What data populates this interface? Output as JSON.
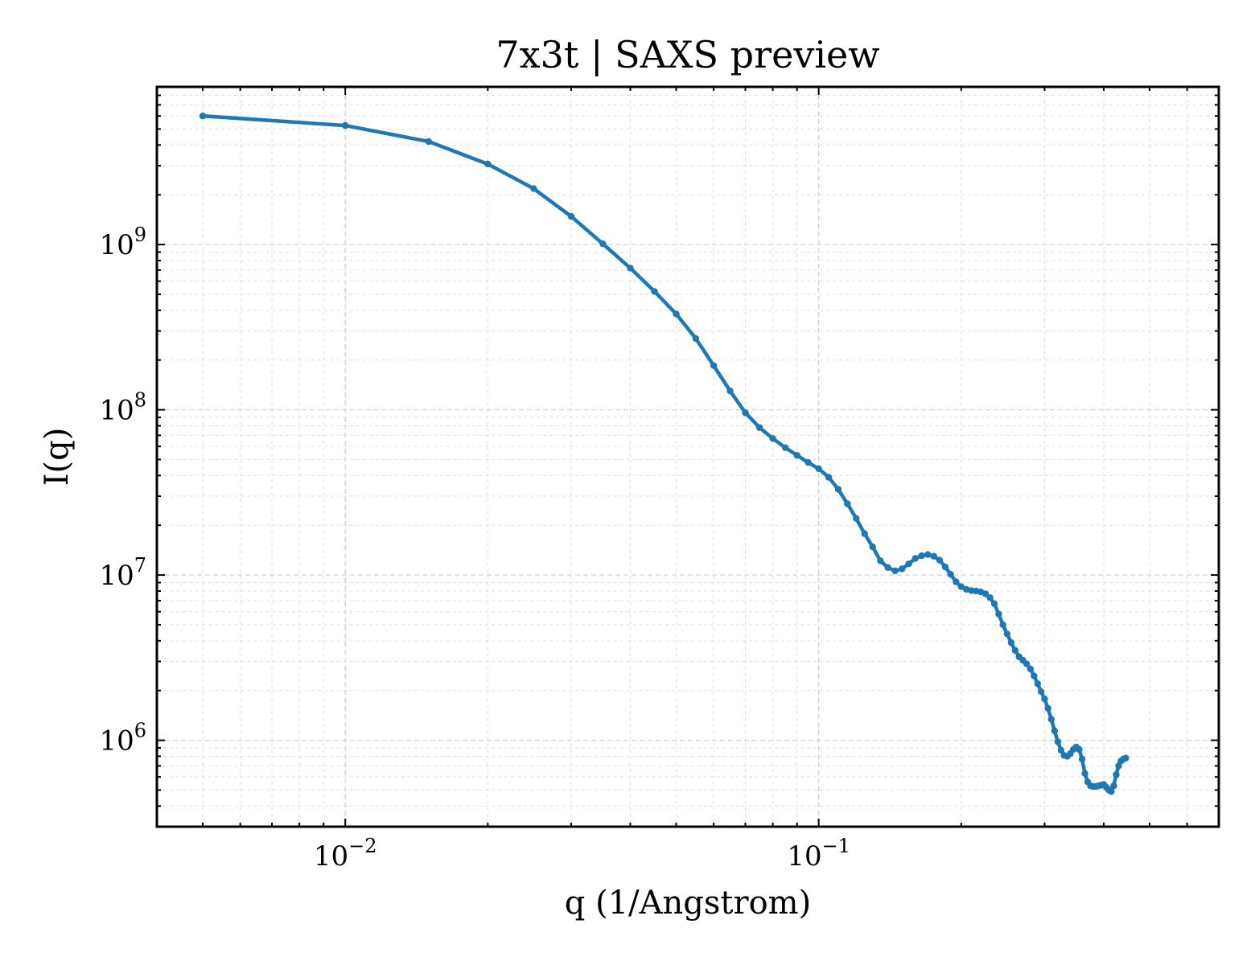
{
  "chart_data": {
    "type": "line",
    "title": "7x3t | SAXS preview",
    "xlabel": "q (1/Angstrom)",
    "ylabel": "I(q)",
    "xscale": "log",
    "yscale": "log",
    "xlim": [
      0.004,
      0.7
    ],
    "ylim": [
      300000,
      9000000000
    ],
    "grid": true,
    "x_ticks": [
      {
        "value": 0.01,
        "base": "10",
        "exp": "−2"
      },
      {
        "value": 0.1,
        "base": "10",
        "exp": "−1"
      }
    ],
    "y_ticks": [
      {
        "value": 1000000,
        "base": "10",
        "exp": "6"
      },
      {
        "value": 10000000,
        "base": "10",
        "exp": "7"
      },
      {
        "value": 100000000,
        "base": "10",
        "exp": "8"
      },
      {
        "value": 1000000000,
        "base": "10",
        "exp": "9"
      }
    ],
    "series": [
      {
        "color": "#1f77b4",
        "points": [
          [
            0.005,
            6000000000
          ],
          [
            0.01,
            5250000000
          ],
          [
            0.015,
            4200000000
          ],
          [
            0.02,
            3070000000
          ],
          [
            0.025,
            2180000000
          ],
          [
            0.03,
            1480000000
          ],
          [
            0.035,
            1010000000
          ],
          [
            0.04,
            720000000
          ],
          [
            0.045,
            520000000
          ],
          [
            0.05,
            380000000
          ],
          [
            0.055,
            270000000
          ],
          [
            0.06,
            185000000
          ],
          [
            0.065,
            130000000
          ],
          [
            0.07,
            96000000
          ],
          [
            0.075,
            78000000
          ],
          [
            0.08,
            67000000
          ],
          [
            0.085,
            59000000
          ],
          [
            0.09,
            53000000
          ],
          [
            0.095,
            48000000
          ],
          [
            0.1,
            44000000
          ],
          [
            0.105,
            39000000
          ],
          [
            0.11,
            33000000
          ],
          [
            0.115,
            27000000
          ],
          [
            0.12,
            22000000
          ],
          [
            0.125,
            17800000
          ],
          [
            0.13,
            14800000
          ],
          [
            0.135,
            12200000
          ],
          [
            0.14,
            11100000
          ],
          [
            0.145,
            10600000
          ],
          [
            0.15,
            10900000
          ],
          [
            0.155,
            11700000
          ],
          [
            0.16,
            12600000
          ],
          [
            0.165,
            13100000
          ],
          [
            0.17,
            13300000
          ],
          [
            0.175,
            13000000
          ],
          [
            0.18,
            12300000
          ],
          [
            0.185,
            11200000
          ],
          [
            0.19,
            10100000
          ],
          [
            0.195,
            9100000
          ],
          [
            0.2,
            8500000
          ],
          [
            0.205,
            8200000
          ],
          [
            0.21,
            8050000
          ],
          [
            0.215,
            8000000
          ],
          [
            0.22,
            7900000
          ],
          [
            0.225,
            7700000
          ],
          [
            0.23,
            7300000
          ],
          [
            0.235,
            6700000
          ],
          [
            0.24,
            5800000
          ],
          [
            0.245,
            5000000
          ],
          [
            0.25,
            4400000
          ],
          [
            0.255,
            3900000
          ],
          [
            0.26,
            3500000
          ],
          [
            0.265,
            3200000
          ],
          [
            0.27,
            3050000
          ],
          [
            0.275,
            2900000
          ],
          [
            0.28,
            2700000
          ],
          [
            0.285,
            2450000
          ],
          [
            0.29,
            2200000
          ],
          [
            0.295,
            1970000
          ],
          [
            0.3,
            1780000
          ],
          [
            0.305,
            1560000
          ],
          [
            0.31,
            1340000
          ],
          [
            0.315,
            1140000
          ],
          [
            0.32,
            980000
          ],
          [
            0.325,
            870000
          ],
          [
            0.33,
            810000
          ],
          [
            0.335,
            800000
          ],
          [
            0.34,
            830000
          ],
          [
            0.345,
            880000
          ],
          [
            0.35,
            910000
          ],
          [
            0.355,
            880000
          ],
          [
            0.36,
            770000
          ],
          [
            0.365,
            630000
          ],
          [
            0.37,
            560000
          ],
          [
            0.375,
            530000
          ],
          [
            0.38,
            525000
          ],
          [
            0.385,
            525000
          ],
          [
            0.39,
            530000
          ],
          [
            0.395,
            535000
          ],
          [
            0.4,
            540000
          ],
          [
            0.405,
            520000
          ],
          [
            0.41,
            500000
          ],
          [
            0.415,
            490000
          ],
          [
            0.42,
            530000
          ],
          [
            0.425,
            620000
          ],
          [
            0.43,
            700000
          ],
          [
            0.435,
            750000
          ],
          [
            0.44,
            770000
          ],
          [
            0.445,
            780000
          ]
        ]
      }
    ]
  }
}
